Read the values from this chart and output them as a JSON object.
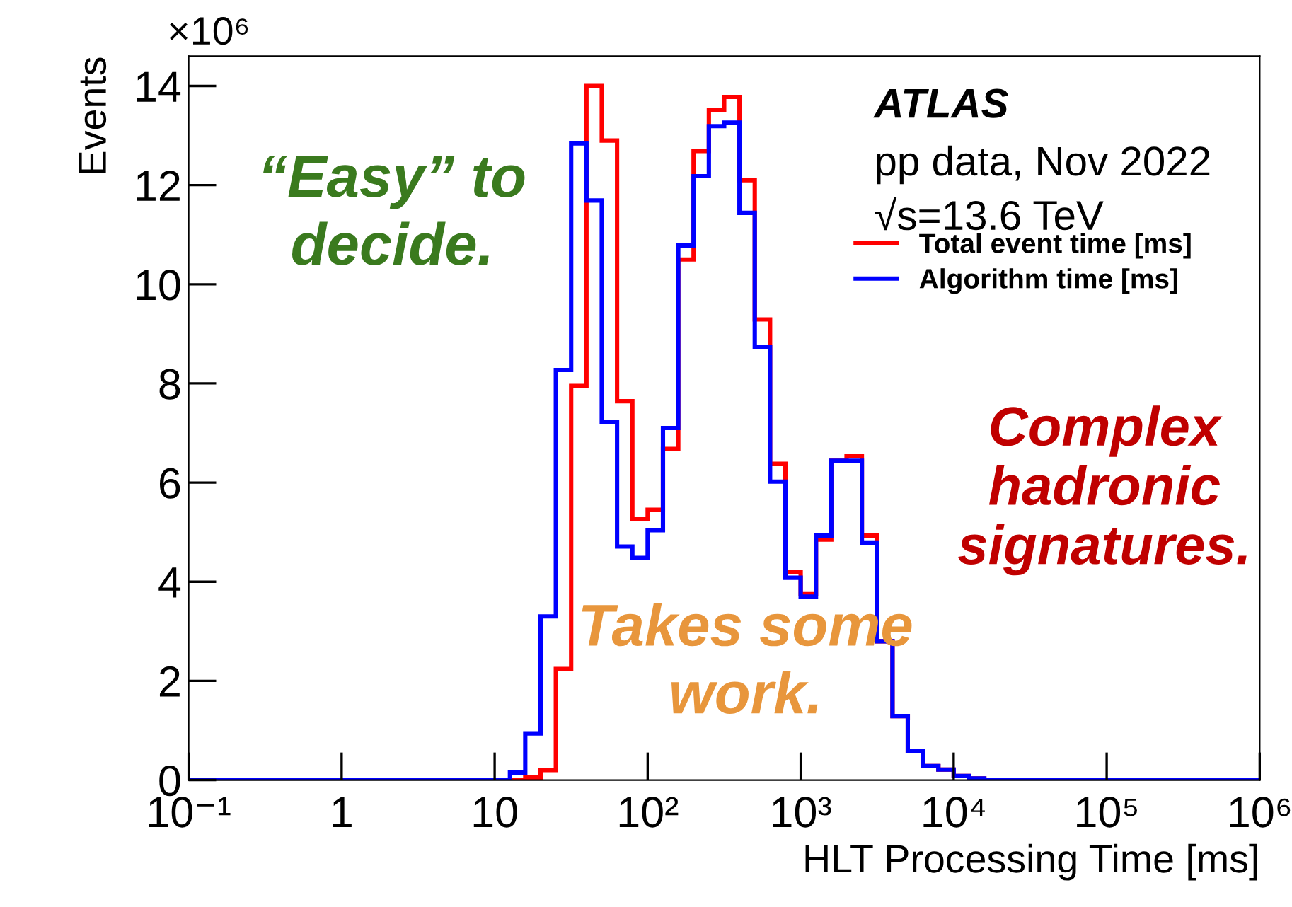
{
  "chart_data": {
    "type": "histogram",
    "xlabel": "HLT Processing Time [ms]",
    "ylabel": "Events",
    "bins": [
      0.1,
      10,
      12.59,
      15.85,
      19.95,
      25.12,
      31.62,
      39.81,
      50.12,
      63.1,
      79.43,
      100,
      125.9,
      158.5,
      199.5,
      251.2,
      316.2,
      398.1,
      501.2,
      631,
      794.3,
      1000,
      1259,
      1585,
      1995,
      2512,
      3162,
      3981,
      5012,
      6310,
      7943,
      10000,
      12590,
      15850,
      19950,
      1000000
    ],
    "series": [
      {
        "name": "Total event time [ms]",
        "color": "#ff0000",
        "values": [
          0,
          0,
          0,
          0.05,
          0.2,
          2.24,
          7.95,
          14.0,
          12.9,
          7.64,
          5.26,
          5.45,
          6.68,
          10.5,
          12.69,
          13.52,
          13.78,
          12.1,
          9.29,
          6.38,
          4.19,
          3.75,
          4.85,
          6.44,
          6.53,
          4.93,
          2.8,
          1.29,
          0.58,
          0.28,
          0.21,
          0.08,
          0.03,
          0,
          0
        ]
      },
      {
        "name": "Algorithm time [ms]",
        "color": "#0000ff",
        "values": [
          0,
          0,
          0.15,
          0.94,
          3.3,
          8.27,
          12.84,
          11.69,
          7.22,
          4.71,
          4.48,
          5.04,
          7.1,
          10.78,
          12.18,
          13.19,
          13.26,
          11.44,
          8.73,
          6.02,
          4.08,
          3.7,
          4.93,
          6.44,
          6.44,
          4.79,
          2.8,
          1.29,
          0.58,
          0.28,
          0.21,
          0.08,
          0.03,
          0,
          0
        ]
      }
    ],
    "log": "x",
    "xlim": [
      0.1,
      1000000
    ],
    "xticks": [
      {
        "value": 0.1,
        "label": "10⁻¹"
      },
      1,
      10,
      {
        "value": 100,
        "label": "10²"
      },
      {
        "value": 1000,
        "label": "10³"
      },
      {
        "value": 10000,
        "label": "10⁴"
      },
      {
        "value": 100000,
        "label": "10⁵"
      },
      {
        "value": 1000000,
        "label": "10⁶"
      }
    ],
    "ylim": [
      0,
      14.6
    ],
    "yticks": [
      0,
      2,
      4,
      6,
      8,
      10,
      12,
      14
    ],
    "legend": "top right",
    "grid": false,
    "annotations": [
      "×10⁶",
      "ATLAS",
      "pp data, Nov 2022",
      "√s=13.6 TeV",
      "“Easy” to\ndecide.",
      "Takes some\nwork.",
      "Complex\nhadronic\nsignatures."
    ]
  }
}
